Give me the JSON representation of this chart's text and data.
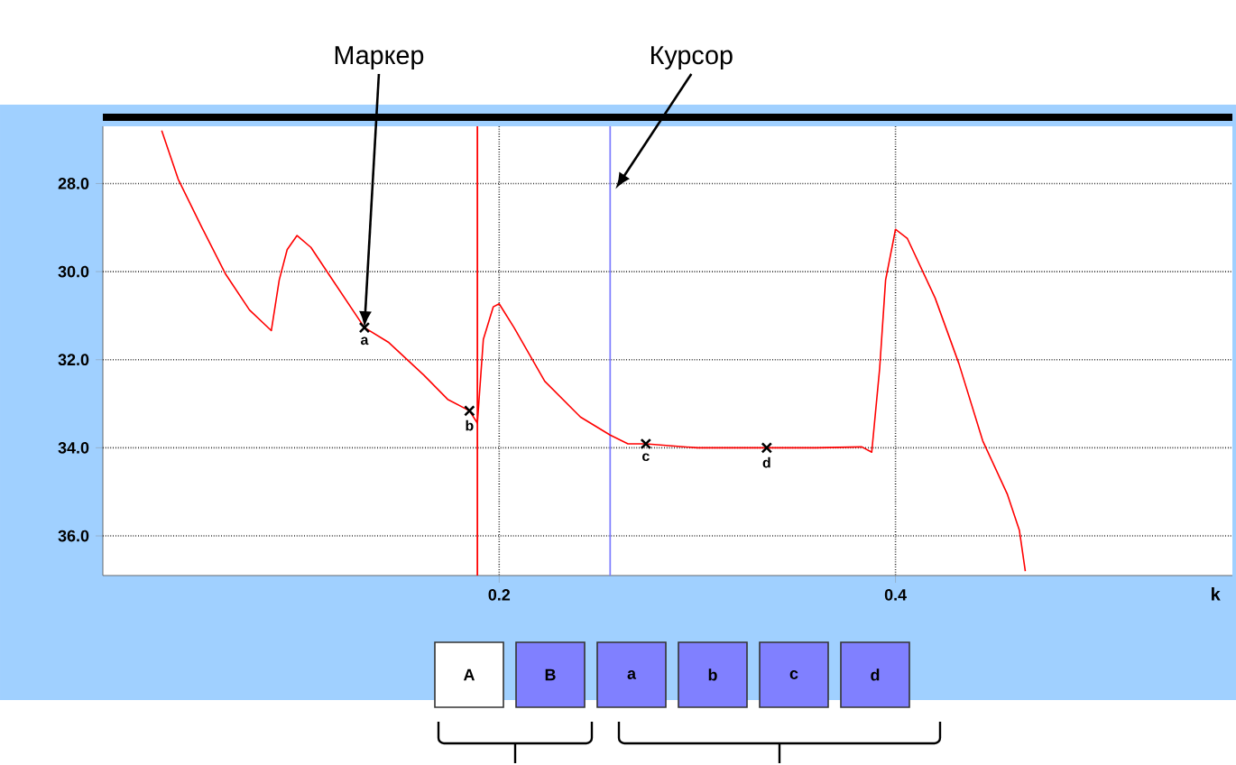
{
  "chart_data": {
    "type": "line",
    "xlabel": "k",
    "xlim": [
      0,
      0.57
    ],
    "ylim": [
      36.9,
      26.7
    ],
    "xticks": [
      0.2,
      0.4
    ],
    "yticks": [
      {
        "value": 28,
        "label": "28.0"
      },
      {
        "value": 30,
        "label": "30.0"
      },
      {
        "value": 32,
        "label": "32.0"
      },
      {
        "value": 34,
        "label": "34.0"
      },
      {
        "value": 36,
        "label": "36.0"
      }
    ],
    "grid": true,
    "series": [
      {
        "type": "line",
        "color": "#ff0000",
        "x": [
          0.0297,
          0.038,
          0.05,
          0.062,
          0.074,
          0.085,
          0.089,
          0.093,
          0.098,
          0.105,
          0.114,
          0.132,
          0.144,
          0.162,
          0.174,
          0.185,
          0.189,
          0.192,
          0.197,
          0.2,
          0.2075,
          0.223,
          0.241,
          0.256,
          0.265,
          0.274,
          0.3,
          0.335,
          0.36,
          0.383,
          0.388,
          0.392,
          0.395,
          0.4,
          0.406,
          0.42,
          0.432,
          0.444,
          0.4565,
          0.4625,
          0.4655
        ],
        "values": [
          26.8,
          27.9,
          29.0,
          30.06,
          30.87,
          31.34,
          30.19,
          29.5,
          29.18,
          29.45,
          30.06,
          31.27,
          31.6,
          32.35,
          32.9,
          33.16,
          33.44,
          31.54,
          30.8,
          30.73,
          31.27,
          32.49,
          33.3,
          33.71,
          33.91,
          33.91,
          34.0,
          34.0,
          34.0,
          33.98,
          34.1,
          32.2,
          30.19,
          29.04,
          29.25,
          30.6,
          32.09,
          33.84,
          35.06,
          35.87,
          36.8
        ]
      },
      {
        "type": "scatter",
        "marker": "cross",
        "color": "#000000",
        "x": [
          0.132,
          0.185,
          0.274,
          0.335
        ],
        "values": [
          31.27,
          33.16,
          33.91,
          34.0
        ]
      }
    ],
    "ref_lines": [
      {
        "axis": "x",
        "value": 0.189,
        "color": "#ff0000"
      },
      {
        "axis": "x",
        "value": 0.256,
        "color": "#8080ff"
      }
    ],
    "annotations": [
      {
        "text": "Маркер",
        "x": 0.132,
        "y": 31.27
      },
      {
        "text": "Курсор",
        "x": 0.256,
        "y": 28
      },
      {
        "text": "a",
        "x": 0.132,
        "y": 31.27
      },
      {
        "text": "b",
        "x": 0.185,
        "y": 33.16
      },
      {
        "text": "c",
        "x": 0.274,
        "y": 33.91
      },
      {
        "text": "d",
        "x": 0.335,
        "y": 34.0
      },
      "A",
      "B",
      "a",
      "b",
      "c",
      "d"
    ]
  }
}
